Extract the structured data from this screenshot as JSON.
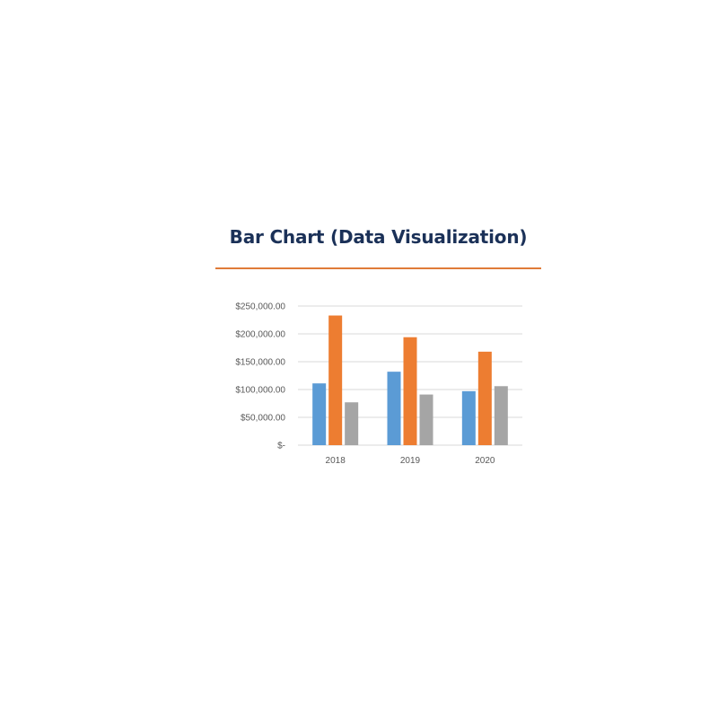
{
  "title": "Bar Chart (Data Visualization)",
  "colors": {
    "title": "#1b3158",
    "rule": "#e07b39",
    "grid": "#d9d9d9",
    "axis_text": "#595959"
  },
  "chart_data": {
    "type": "bar",
    "title": "",
    "xlabel": "",
    "ylabel": "",
    "categories": [
      "2018",
      "2019",
      "2020"
    ],
    "series": [
      {
        "color": "#5b9bd5",
        "values": [
          111000,
          132000,
          97000
        ]
      },
      {
        "color": "#ed7d31",
        "values": [
          233000,
          194000,
          168000
        ]
      },
      {
        "color": "#a5a5a5",
        "values": [
          77000,
          91000,
          106000
        ]
      }
    ],
    "ylim": [
      0,
      250000
    ],
    "yticks": [
      0,
      50000,
      100000,
      150000,
      200000,
      250000
    ],
    "ytick_labels": [
      "$-",
      "$50,000.00",
      "$100,000.00",
      "$150,000.00",
      "$200,000.00",
      "$250,000.00"
    ],
    "grid": true,
    "legend": "none"
  }
}
